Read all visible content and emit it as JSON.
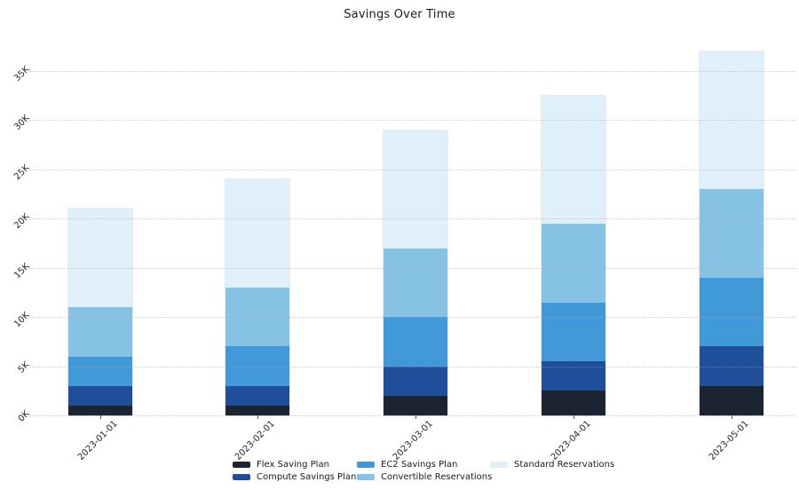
{
  "title": "Savings Over Time",
  "chart_data": {
    "type": "bar",
    "stacked": true,
    "title": "Savings Over Time",
    "xlabel": "",
    "ylabel": "",
    "categories": [
      "2023-01-01",
      "2023-02-01",
      "2023-03-01",
      "2023-04-01",
      "2023-05-01"
    ],
    "series": [
      {
        "name": "Flex Saving Plan",
        "color": "#1b2531",
        "values": [
          1000,
          1000,
          2000,
          2500,
          3000
        ]
      },
      {
        "name": "Compute Savings Plan",
        "color": "#1f4f9b",
        "values": [
          2000,
          2000,
          3000,
          3000,
          4000
        ]
      },
      {
        "name": "EC2 Savings Plan",
        "color": "#4199da",
        "values": [
          3000,
          4000,
          5000,
          6000,
          7000
        ]
      },
      {
        "name": "Convertible Reservations",
        "color": "#85c2e4",
        "values": [
          5000,
          6000,
          7000,
          8000,
          9000
        ]
      },
      {
        "name": "Standard Reservations",
        "color": "#e0f0fb",
        "values": [
          10000,
          11000,
          12000,
          13000,
          14000
        ]
      }
    ],
    "stack_totals": [
      21000,
      24000,
      29000,
      32500,
      37000
    ],
    "yticks": [
      "0K",
      "5K",
      "10K",
      "15K",
      "20K",
      "25K",
      "30K",
      "35K"
    ],
    "ytick_values": [
      0,
      5000,
      10000,
      15000,
      20000,
      25000,
      30000,
      35000
    ],
    "ylim": [
      0,
      37500
    ],
    "grid": "horizontal-dotted",
    "legend_position": "bottom",
    "legend_entries": [
      "Flex Saving Plan",
      "Compute Savings Plan",
      "EC2 Savings Plan",
      "Convertible Reservations",
      "Standard Reservations"
    ]
  }
}
